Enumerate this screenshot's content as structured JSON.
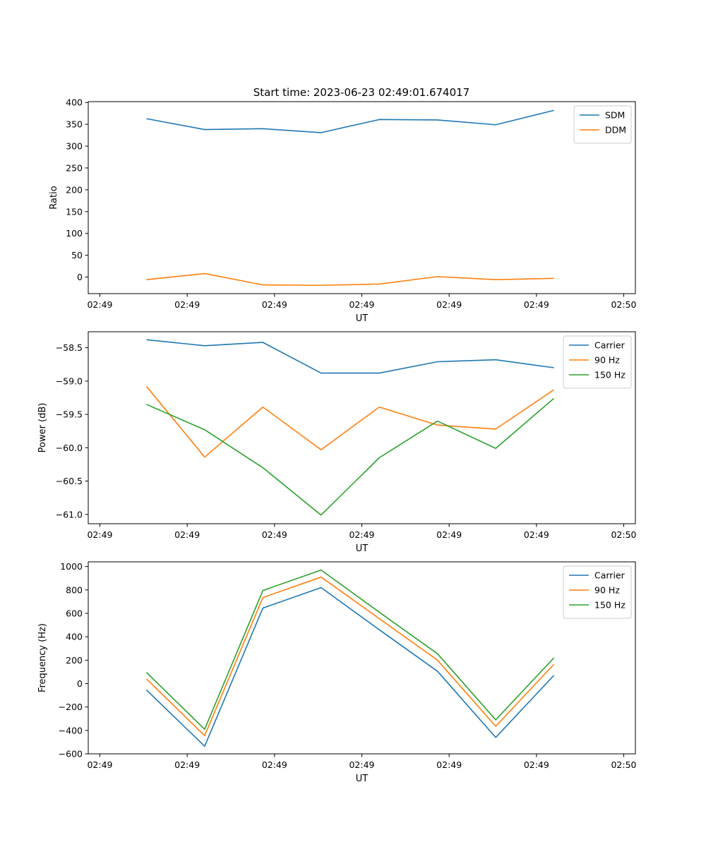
{
  "figure": {
    "title": "Start time: 2023-06-23 02:49:01.674017"
  },
  "chart_data": [
    {
      "type": "line",
      "title": "Start time: 2023-06-23 02:49:01.674017",
      "xlabel": "UT",
      "ylabel": "Ratio",
      "x": [
        1,
        2,
        3,
        4,
        5,
        6,
        7,
        8
      ],
      "x_ticks": [
        0.2,
        1.7,
        3.2,
        4.7,
        6.2,
        7.7,
        9.2
      ],
      "x_tick_labels": [
        "02:49",
        "02:49",
        "02:49",
        "02:49",
        "02:49",
        "02:49",
        "02:50"
      ],
      "xlim": [
        0,
        9.4
      ],
      "ylim": [
        -38,
        402
      ],
      "y_ticks": [
        0,
        50,
        100,
        150,
        200,
        250,
        300,
        350,
        400
      ],
      "y_tick_labels": [
        "0",
        "50",
        "100",
        "150",
        "200",
        "250",
        "300",
        "350",
        "400"
      ],
      "grid": false,
      "legend": "top-right",
      "series": [
        {
          "name": "SDM",
          "color": "#1f77b4",
          "values": [
            363,
            338,
            340,
            331,
            361,
            360,
            349,
            382
          ]
        },
        {
          "name": "DDM",
          "color": "#ff7f0e",
          "values": [
            -6,
            8,
            -18,
            -19,
            -16,
            1,
            -6,
            -3
          ]
        }
      ]
    },
    {
      "type": "line",
      "title": "",
      "xlabel": "UT",
      "ylabel": "Power (dB)",
      "x": [
        1,
        2,
        3,
        4,
        5,
        6,
        7,
        8
      ],
      "x_ticks": [
        0.2,
        1.7,
        3.2,
        4.7,
        6.2,
        7.7,
        9.2
      ],
      "x_tick_labels": [
        "02:49",
        "02:49",
        "02:49",
        "02:49",
        "02:49",
        "02:49",
        "02:50"
      ],
      "xlim": [
        0,
        9.4
      ],
      "ylim": [
        -61.14,
        -58.26
      ],
      "y_ticks": [
        -58.5,
        -59.0,
        -59.5,
        -60.0,
        -60.5,
        -61.0
      ],
      "y_tick_labels": [
        "−58.5",
        "−59.0",
        "−59.5",
        "−60.0",
        "−60.5",
        "−61.0"
      ],
      "grid": false,
      "legend": "top-right",
      "series": [
        {
          "name": "Carrier",
          "color": "#1f77b4",
          "values": [
            -58.38,
            -58.47,
            -58.42,
            -58.88,
            -58.88,
            -58.71,
            -58.68,
            -58.8
          ]
        },
        {
          "name": "90 Hz",
          "color": "#ff7f0e",
          "values": [
            -59.08,
            -60.14,
            -59.39,
            -60.03,
            -59.39,
            -59.66,
            -59.72,
            -59.13
          ]
        },
        {
          "name": "150 Hz",
          "color": "#2ca02c",
          "values": [
            -59.35,
            -59.73,
            -60.3,
            -61.01,
            -60.15,
            -59.6,
            -60.01,
            -59.26
          ]
        }
      ]
    },
    {
      "type": "line",
      "title": "",
      "xlabel": "UT",
      "ylabel": "Frequency (Hz)",
      "x": [
        1,
        2,
        3,
        4,
        5,
        6,
        7,
        8
      ],
      "x_ticks": [
        0.2,
        1.7,
        3.2,
        4.7,
        6.2,
        7.7,
        9.2
      ],
      "x_tick_labels": [
        "02:49",
        "02:49",
        "02:49",
        "02:49",
        "02:49",
        "02:49",
        "02:50"
      ],
      "xlim": [
        0,
        9.4
      ],
      "ylim": [
        -600,
        1040
      ],
      "y_ticks": [
        -600,
        -400,
        -200,
        0,
        200,
        400,
        600,
        800,
        1000
      ],
      "y_tick_labels": [
        "−600",
        "−400",
        "−200",
        "0",
        "200",
        "400",
        "600",
        "800",
        "1000"
      ],
      "grid": false,
      "legend": "top-right",
      "series": [
        {
          "name": "Carrier",
          "color": "#1f77b4",
          "values": [
            -55,
            -535,
            645,
            820,
            460,
            105,
            -460,
            70
          ]
        },
        {
          "name": "90 Hz",
          "color": "#ff7f0e",
          "values": [
            40,
            -445,
            735,
            910,
            555,
            200,
            -365,
            165
          ]
        },
        {
          "name": "150 Hz",
          "color": "#2ca02c",
          "values": [
            95,
            -390,
            795,
            970,
            610,
            255,
            -310,
            220
          ]
        }
      ]
    }
  ]
}
